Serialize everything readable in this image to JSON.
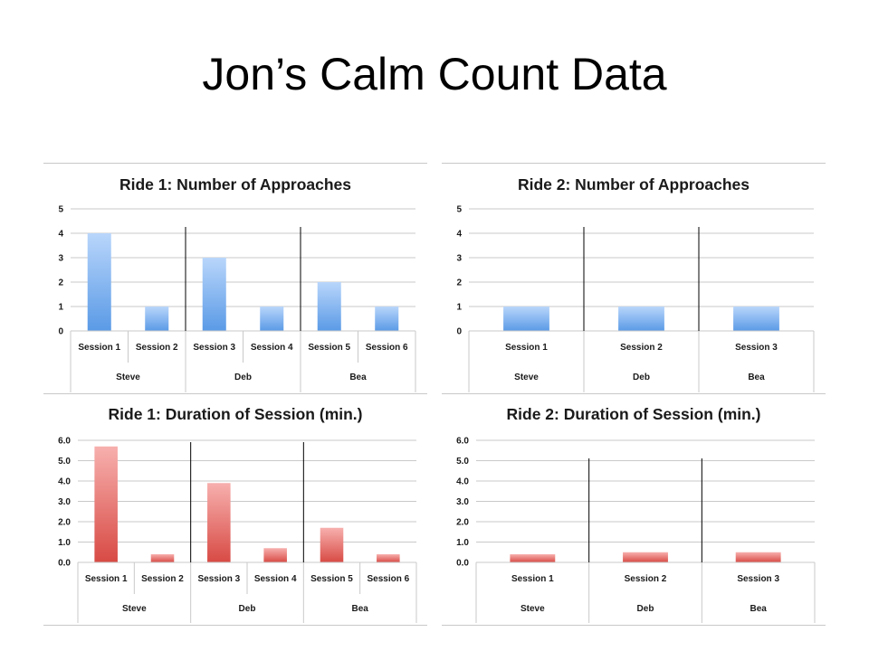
{
  "slide": {
    "title": "Jon’s Calm Count Data"
  },
  "colors": {
    "blue_top": "#b9d6fb",
    "blue_bottom": "#5a9ae6",
    "red_top": "#f7b0ae",
    "red_bottom": "#d84a44",
    "grid": "#c9c9c9",
    "separator": "#000000"
  },
  "chart_data": [
    {
      "type": "bar",
      "title": "Ride 1: Number of Approaches",
      "categories": [
        "Session 1",
        "Session 2",
        "Session 3",
        "Session 4",
        "Session 5",
        "Session 6"
      ],
      "groups": [
        {
          "label": "Steve",
          "categories": [
            "Session 1",
            "Session 2"
          ]
        },
        {
          "label": "Deb",
          "categories": [
            "Session 3",
            "Session 4"
          ]
        },
        {
          "label": "Bea",
          "categories": [
            "Session 5",
            "Session 6"
          ]
        }
      ],
      "values": [
        4,
        1,
        3,
        1,
        2,
        1
      ],
      "ylim": [
        0,
        5
      ],
      "yticks": [
        "0",
        "1",
        "2",
        "3",
        "4",
        "5"
      ],
      "color": "blue",
      "grid": true,
      "xlabel": "",
      "ylabel": ""
    },
    {
      "type": "bar",
      "title": "Ride 2: Number of Approaches",
      "categories": [
        "Session 1",
        "Session 2",
        "Session 3"
      ],
      "groups": [
        {
          "label": "Steve",
          "categories": [
            "Session 1"
          ]
        },
        {
          "label": "Deb",
          "categories": [
            "Session 2"
          ]
        },
        {
          "label": "Bea",
          "categories": [
            "Session 3"
          ]
        }
      ],
      "values": [
        1,
        1,
        1
      ],
      "ylim": [
        0,
        5
      ],
      "yticks": [
        "0",
        "1",
        "2",
        "3",
        "4",
        "5"
      ],
      "color": "blue",
      "grid": true,
      "xlabel": "",
      "ylabel": ""
    },
    {
      "type": "bar",
      "title": "Ride 1: Duration of Session (min.)",
      "categories": [
        "Session 1",
        "Session 2",
        "Session 3",
        "Session 4",
        "Session 5",
        "Session 6"
      ],
      "groups": [
        {
          "label": "Steve",
          "categories": [
            "Session 1",
            "Session 2"
          ]
        },
        {
          "label": "Deb",
          "categories": [
            "Session 3",
            "Session 4"
          ]
        },
        {
          "label": "Bea",
          "categories": [
            "Session 5",
            "Session 6"
          ]
        }
      ],
      "values": [
        5.7,
        0.4,
        3.9,
        0.7,
        1.7,
        0.4
      ],
      "ylim": [
        0,
        6
      ],
      "yticks": [
        "0.0",
        "1.0",
        "2.0",
        "3.0",
        "4.0",
        "5.0",
        "6.0"
      ],
      "color": "red",
      "grid": true,
      "xlabel": "",
      "ylabel": ""
    },
    {
      "type": "bar",
      "title": "Ride 2: Duration of Session (min.)",
      "categories": [
        "Session 1",
        "Session 2",
        "Session 3"
      ],
      "groups": [
        {
          "label": "Steve",
          "categories": [
            "Session 1"
          ]
        },
        {
          "label": "Deb",
          "categories": [
            "Session 2"
          ]
        },
        {
          "label": "Bea",
          "categories": [
            "Session 3"
          ]
        }
      ],
      "values": [
        0.4,
        0.5,
        0.5
      ],
      "ylim": [
        0,
        6
      ],
      "yticks": [
        "0.0",
        "1.0",
        "2.0",
        "3.0",
        "4.0",
        "5.0",
        "6.0"
      ],
      "color": "red",
      "grid": true,
      "xlabel": "",
      "ylabel": ""
    }
  ]
}
